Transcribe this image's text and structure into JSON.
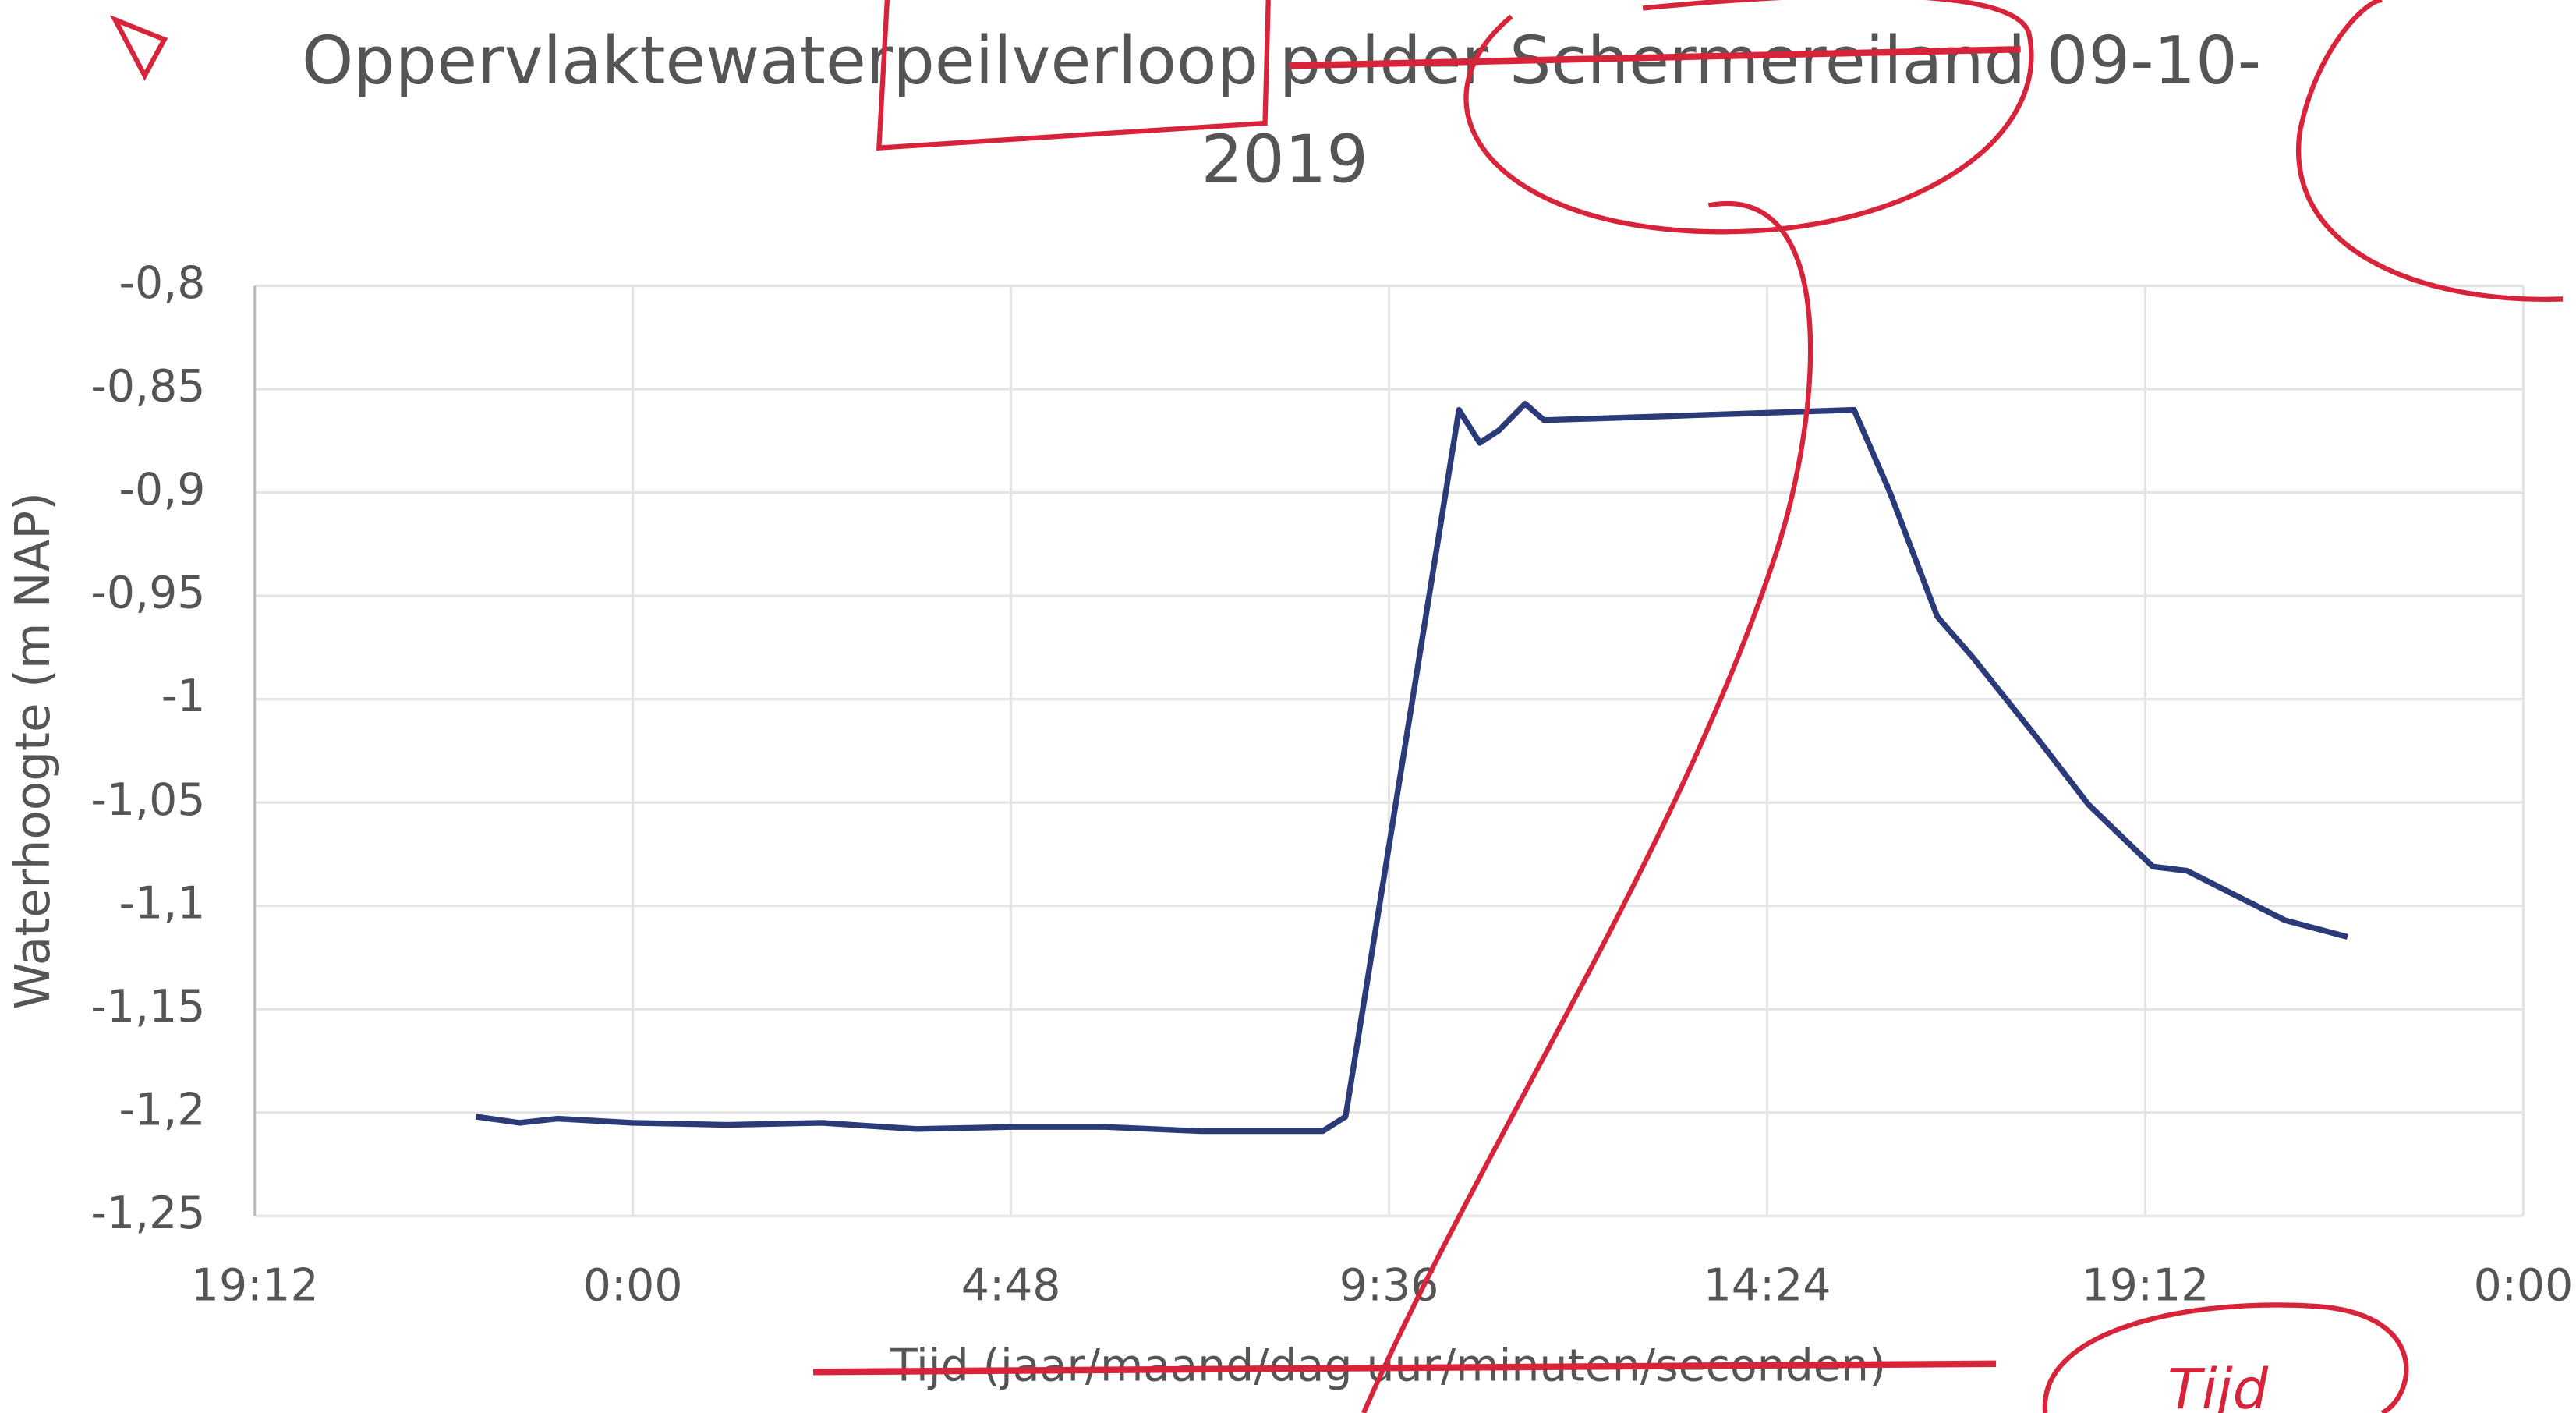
{
  "chart_data": {
    "type": "line",
    "title": [
      "Oppervlaktewaterpeilverloop polder Schermereiland 09-10-",
      "2019"
    ],
    "y_label": "Waterhoogte (m NAP)",
    "x_label": "Tijd (jaar/maand/dag uur/minuten/seconden)",
    "annotation": "Tijd",
    "x": [
      0.917,
      0.94,
      0.96,
      1.0,
      1.05,
      1.1,
      1.15,
      1.2,
      1.25,
      1.3,
      1.365,
      1.377,
      1.437,
      1.448,
      1.458,
      1.472,
      1.482,
      1.646,
      1.665,
      1.69,
      1.709,
      1.743,
      1.77,
      1.804,
      1.822,
      1.848,
      1.874,
      1.907
    ],
    "series": [
      {
        "name": "Waterhoogte",
        "color": "#2b3a78",
        "values": [
          -1.202,
          -1.205,
          -1.203,
          -1.205,
          -1.206,
          -1.205,
          -1.208,
          -1.207,
          -1.207,
          -1.209,
          -1.209,
          -1.202,
          -0.86,
          -0.876,
          -0.87,
          -0.857,
          -0.865,
          -0.86,
          -0.9,
          -0.96,
          -0.98,
          -1.019,
          -1.051,
          -1.081,
          -1.083,
          -1.095,
          -1.107,
          -1.115
        ]
      }
    ],
    "xlim": [
      0.8,
      2.0
    ],
    "xticks": [
      {
        "value": 0.8,
        "label": "19:12"
      },
      {
        "value": 1.0,
        "label": "0:00"
      },
      {
        "value": 1.2,
        "label": "4:48"
      },
      {
        "value": 1.4,
        "label": "9:36"
      },
      {
        "value": 1.6,
        "label": "14:24"
      },
      {
        "value": 1.8,
        "label": "19:12"
      },
      {
        "value": 2.0,
        "label": "0:00"
      }
    ],
    "ylim": [
      -1.25,
      -0.8
    ],
    "yticks": [
      {
        "value": -0.8,
        "label": "-0,8"
      },
      {
        "value": -0.85,
        "label": "-0,85"
      },
      {
        "value": -0.9,
        "label": "-0,9"
      },
      {
        "value": -0.95,
        "label": "-0,95"
      },
      -1,
      {
        "value": -1.05,
        "label": "-1,05"
      },
      {
        "value": -1.1,
        "label": "-1,1"
      },
      {
        "value": -1.15,
        "label": "-1,15"
      },
      {
        "value": -1.2,
        "label": "-1,2"
      },
      {
        "value": -1.25,
        "label": "-1,25"
      }
    ],
    "grid": true
  }
}
